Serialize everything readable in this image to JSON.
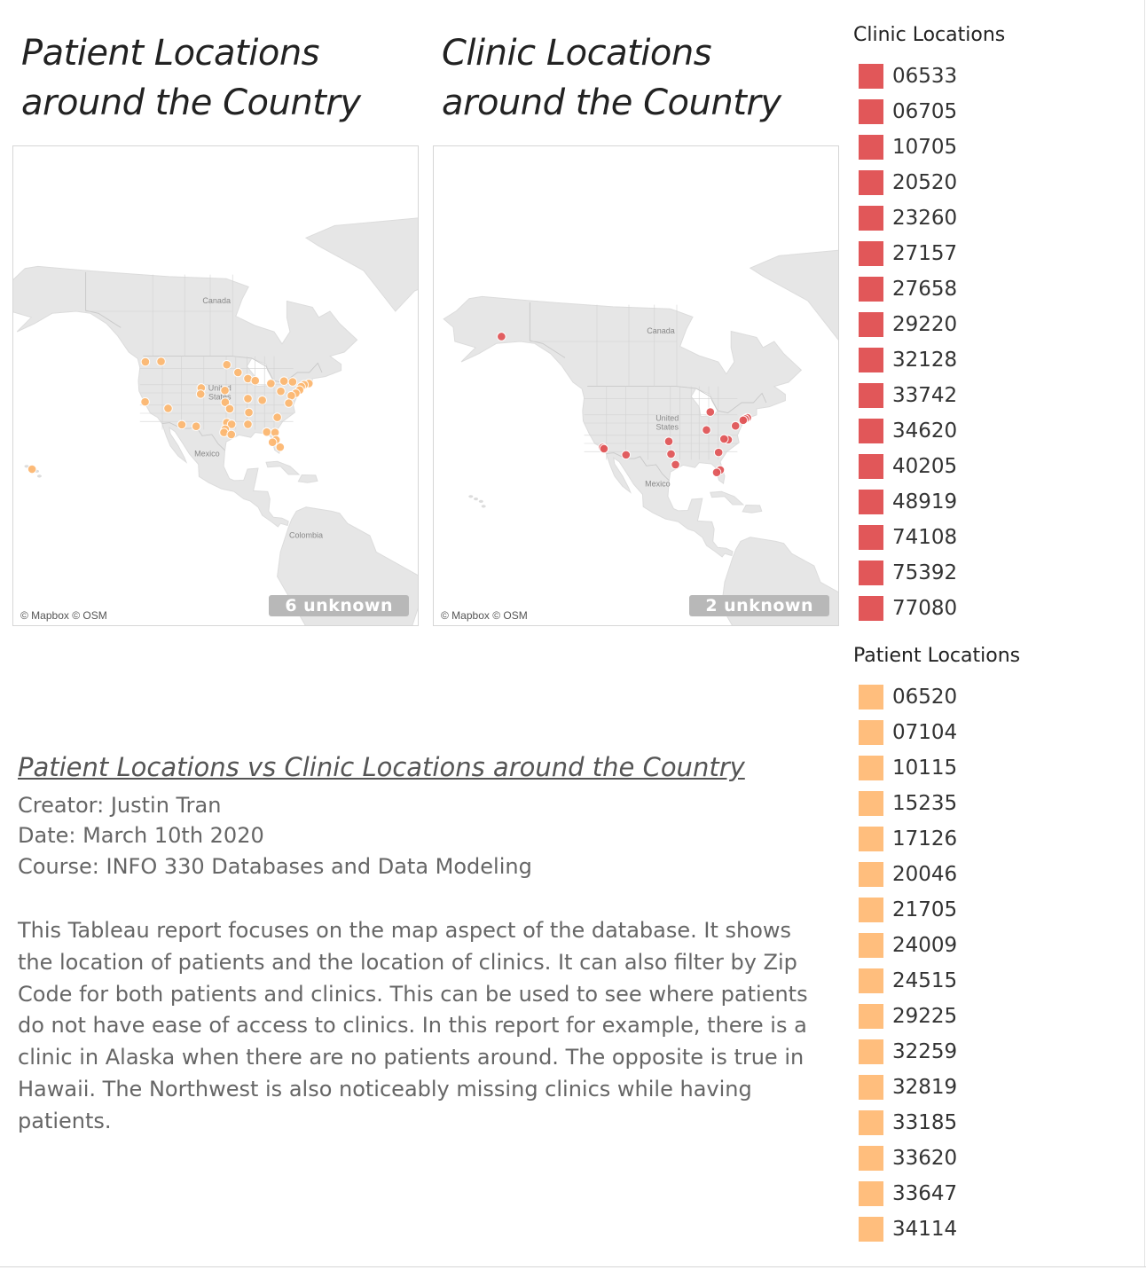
{
  "patient_map": {
    "title": "Patient Locations around the Country",
    "attribution": "© Mapbox © OSM",
    "unknown_label": "6 unknown",
    "country_labels": [
      "Canada",
      "United States",
      "Mexico",
      "Colombia"
    ],
    "marker_color": "#FDB872",
    "markers": [
      {
        "lat": 47.6,
        "lon": -122.3
      },
      {
        "lat": 47.7,
        "lon": -117.4
      },
      {
        "lat": 46.9,
        "lon": -96.8
      },
      {
        "lat": 45.0,
        "lon": -93.3
      },
      {
        "lat": 43.5,
        "lon": -90.2
      },
      {
        "lat": 43.0,
        "lon": -87.9
      },
      {
        "lat": 42.3,
        "lon": -83.0
      },
      {
        "lat": 42.9,
        "lon": -78.9
      },
      {
        "lat": 42.7,
        "lon": -76.2
      },
      {
        "lat": 42.3,
        "lon": -71.1
      },
      {
        "lat": 42.0,
        "lon": -72.6
      },
      {
        "lat": 41.5,
        "lon": -73.5
      },
      {
        "lat": 40.7,
        "lon": -74.0
      },
      {
        "lat": 40.4,
        "lon": -79.9
      },
      {
        "lat": 39.9,
        "lon": -75.2
      },
      {
        "lat": 39.3,
        "lon": -76.6
      },
      {
        "lat": 41.2,
        "lon": -104.8
      },
      {
        "lat": 40.6,
        "lon": -97.4
      },
      {
        "lat": 39.7,
        "lon": -105.0
      },
      {
        "lat": 38.6,
        "lon": -90.2
      },
      {
        "lat": 38.2,
        "lon": -85.7
      },
      {
        "lat": 37.5,
        "lon": -77.4
      },
      {
        "lat": 37.7,
        "lon": -97.3
      },
      {
        "lat": 37.8,
        "lon": -122.4
      },
      {
        "lat": 36.2,
        "lon": -115.2
      },
      {
        "lat": 36.1,
        "lon": -95.9
      },
      {
        "lat": 35.2,
        "lon": -89.9
      },
      {
        "lat": 34.0,
        "lon": -81.0
      },
      {
        "lat": 32.2,
        "lon": -110.9
      },
      {
        "lat": 31.8,
        "lon": -106.4
      },
      {
        "lat": 32.7,
        "lon": -96.8
      },
      {
        "lat": 32.3,
        "lon": -95.3
      },
      {
        "lat": 32.3,
        "lon": -90.2
      },
      {
        "lat": 31.1,
        "lon": -97.3
      },
      {
        "lat": 30.3,
        "lon": -97.7
      },
      {
        "lat": 29.8,
        "lon": -95.4
      },
      {
        "lat": 30.4,
        "lon": -84.3
      },
      {
        "lat": 30.3,
        "lon": -81.7
      },
      {
        "lat": 28.5,
        "lon": -81.4
      },
      {
        "lat": 27.9,
        "lon": -82.5
      },
      {
        "lat": 26.7,
        "lon": -80.1
      },
      {
        "lat": 21.3,
        "lon": -157.8
      }
    ]
  },
  "clinic_map": {
    "title": "Clinic Locations around the Country",
    "attribution": "© Mapbox © OSM",
    "unknown_label": "2 unknown",
    "country_labels": [
      "Canada",
      "United States",
      "Mexico"
    ],
    "marker_color": "#E15759",
    "markers": [
      {
        "lat": 61.2,
        "lon": -149.9
      },
      {
        "lat": 42.7,
        "lon": -84.5
      },
      {
        "lat": 41.3,
        "lon": -72.9
      },
      {
        "lat": 41.0,
        "lon": -73.6
      },
      {
        "lat": 40.7,
        "lon": -74.2
      },
      {
        "lat": 39.3,
        "lon": -76.6
      },
      {
        "lat": 38.3,
        "lon": -85.7
      },
      {
        "lat": 35.9,
        "lon": -78.9
      },
      {
        "lat": 36.1,
        "lon": -80.2
      },
      {
        "lat": 35.5,
        "lon": -97.5
      },
      {
        "lat": 34.0,
        "lon": -118.2
      },
      {
        "lat": 33.7,
        "lon": -117.8
      },
      {
        "lat": 32.2,
        "lon": -110.9
      },
      {
        "lat": 32.8,
        "lon": -81.9
      },
      {
        "lat": 32.4,
        "lon": -96.8
      },
      {
        "lat": 29.8,
        "lon": -95.4
      },
      {
        "lat": 28.5,
        "lon": -81.4
      },
      {
        "lat": 27.9,
        "lon": -82.5
      }
    ]
  },
  "clinic_legend": {
    "title": "Clinic Locations",
    "color": "#E15759",
    "items": [
      "06533",
      "06705",
      "10705",
      "20520",
      "23260",
      "27157",
      "27658",
      "29220",
      "32128",
      "33742",
      "34620",
      "40205",
      "48919",
      "74108",
      "75392",
      "77080"
    ]
  },
  "patient_legend": {
    "title": "Patient Locations",
    "color": "#FFBE7D",
    "items": [
      "06520",
      "07104",
      "10115",
      "15235",
      "17126",
      "20046",
      "21705",
      "24009",
      "24515",
      "29225",
      "32259",
      "32819",
      "33185",
      "33620",
      "33647",
      "34114"
    ]
  },
  "report": {
    "heading": "Patient Locations vs Clinic Locations around the Country",
    "creator": "Creator: Justin Tran",
    "date": "Date: March 10th 2020",
    "course": "Course: INFO 330 Databases and Data Modeling",
    "body": "This Tableau report focuses on the map aspect of the database. It shows the location of patients and the location of clinics. It can also filter by Zip Code for both patients and clinics. This can be used to see where patients do not have ease of access to clinics. In this report for example, there is a clinic in Alaska when there are no patients around. The opposite is true in Hawaii. The Northwest is also noticeably missing clinics while having patients."
  }
}
